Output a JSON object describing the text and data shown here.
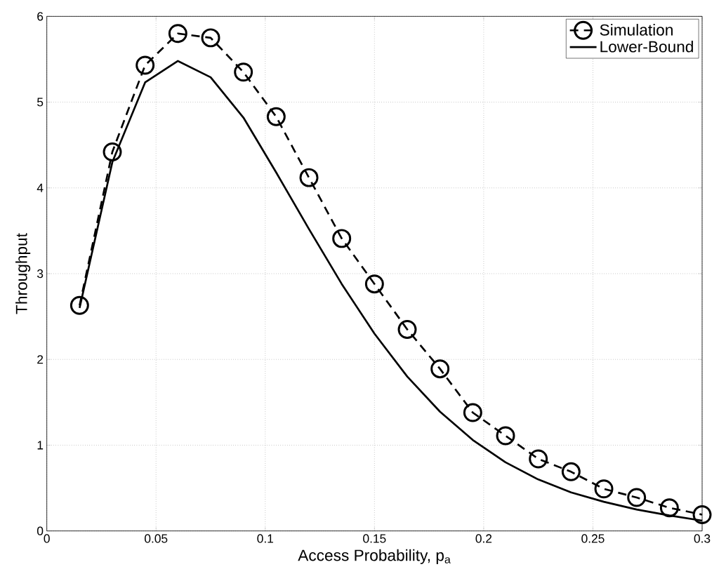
{
  "chart_data": {
    "type": "line",
    "xlabel": "Access Probability, p$_{a}$",
    "ylabel": "Throughput",
    "x": [
      0.015,
      0.03,
      0.045,
      0.06,
      0.075,
      0.09,
      0.105,
      0.12,
      0.135,
      0.15,
      0.165,
      0.18,
      0.195,
      0.21,
      0.225,
      0.24,
      0.255,
      0.27,
      0.285,
      0.3
    ],
    "series": [
      {
        "name": "Simulation",
        "color": "#000000",
        "marker": "circle",
        "line_style": "dashed",
        "values": [
          2.63,
          4.42,
          5.43,
          5.8,
          5.75,
          5.35,
          4.83,
          4.12,
          3.41,
          2.88,
          2.35,
          1.89,
          1.38,
          1.11,
          0.84,
          0.69,
          0.49,
          0.39,
          0.27,
          0.19
        ]
      },
      {
        "name": "Lower-Bound",
        "color": "#000000",
        "marker": "none",
        "line_style": "solid",
        "values": [
          2.6,
          4.3,
          5.23,
          5.48,
          5.29,
          4.82,
          4.18,
          3.52,
          2.88,
          2.3,
          1.8,
          1.39,
          1.06,
          0.8,
          0.6,
          0.45,
          0.34,
          0.25,
          0.18,
          0.12
        ]
      }
    ],
    "xlim": [
      0,
      0.3
    ],
    "ylim": [
      0,
      6
    ],
    "xticks": [
      0,
      0.05,
      0.1,
      0.15,
      0.2,
      0.25,
      0.3
    ],
    "yticks": [
      0,
      1,
      2,
      3,
      4,
      5,
      6
    ],
    "grid": true,
    "legend": "top right"
  }
}
